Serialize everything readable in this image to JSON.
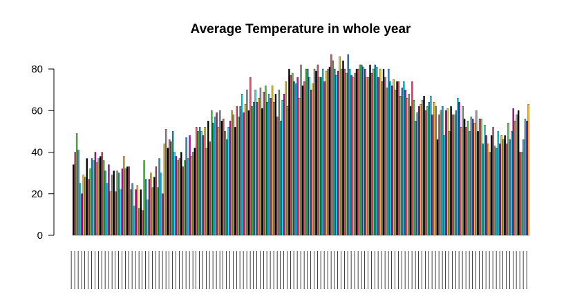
{
  "chart_data": {
    "type": "bar",
    "title": "Average Temperature in whole year",
    "xlabel": "",
    "ylabel": "",
    "ylim": [
      0,
      90
    ],
    "y_ticks": [
      0,
      20,
      40,
      60,
      80
    ],
    "grid": false,
    "legend": "none",
    "bar_colors": [
      "#000000",
      "#df536b",
      "#61d04f",
      "#2297e6",
      "#28e2e5",
      "#cd0bbc",
      "#f5c710",
      "#9e9e9e"
    ],
    "values": [
      34,
      40,
      49,
      41,
      25,
      20,
      29,
      28,
      37,
      27,
      32,
      37,
      36,
      40,
      35,
      37,
      38,
      40,
      36,
      31,
      25,
      34,
      21,
      29,
      31,
      21,
      31,
      30,
      22,
      32,
      38,
      32,
      33,
      33,
      22,
      25,
      14,
      22,
      24,
      13,
      22,
      12,
      36,
      27,
      17,
      27,
      30,
      23,
      28,
      33,
      23,
      37,
      30,
      20,
      44,
      51,
      42,
      46,
      45,
      50,
      40,
      38,
      36,
      37,
      40,
      33,
      36,
      47,
      37,
      48,
      38,
      40,
      42,
      52,
      50,
      52,
      50,
      48,
      52,
      42,
      55,
      45,
      60,
      54,
      57,
      59,
      52,
      60,
      55,
      56,
      50,
      46,
      52,
      55,
      60,
      58,
      52,
      62,
      57,
      62,
      68,
      59,
      63,
      70,
      60,
      76,
      62,
      64,
      70,
      64,
      66,
      71,
      61,
      69,
      72,
      64,
      68,
      66,
      72,
      64,
      68,
      57,
      70,
      55,
      65,
      68,
      74,
      62,
      80,
      77,
      78,
      74,
      73,
      76,
      66,
      82,
      72,
      74,
      80,
      80,
      76,
      70,
      73,
      80,
      79,
      82,
      76,
      76,
      80,
      74,
      79,
      80,
      81,
      87,
      84,
      80,
      77,
      79,
      86,
      80,
      84,
      80,
      78,
      87,
      80,
      77,
      76,
      78,
      80,
      80,
      82,
      82,
      81,
      80,
      76,
      76,
      82,
      78,
      80,
      82,
      81,
      76,
      80,
      74,
      80,
      76,
      71,
      80,
      74,
      72,
      75,
      70,
      74,
      74,
      67,
      71,
      74,
      70,
      66,
      68,
      62,
      74,
      65,
      55,
      59,
      62,
      63,
      65,
      67,
      60,
      62,
      64,
      67,
      58,
      64,
      62,
      46,
      58,
      60,
      62,
      48,
      60,
      61,
      50,
      62,
      58,
      58,
      60,
      66,
      64,
      52,
      62,
      56,
      52,
      55,
      50,
      57,
      56,
      54,
      60,
      50,
      56,
      56,
      44,
      53,
      48,
      44,
      40,
      48,
      52,
      43,
      42,
      50,
      44,
      48,
      46,
      48,
      44,
      54,
      46,
      50,
      61,
      55,
      58,
      60,
      40,
      40,
      46,
      56,
      55,
      63
    ]
  }
}
